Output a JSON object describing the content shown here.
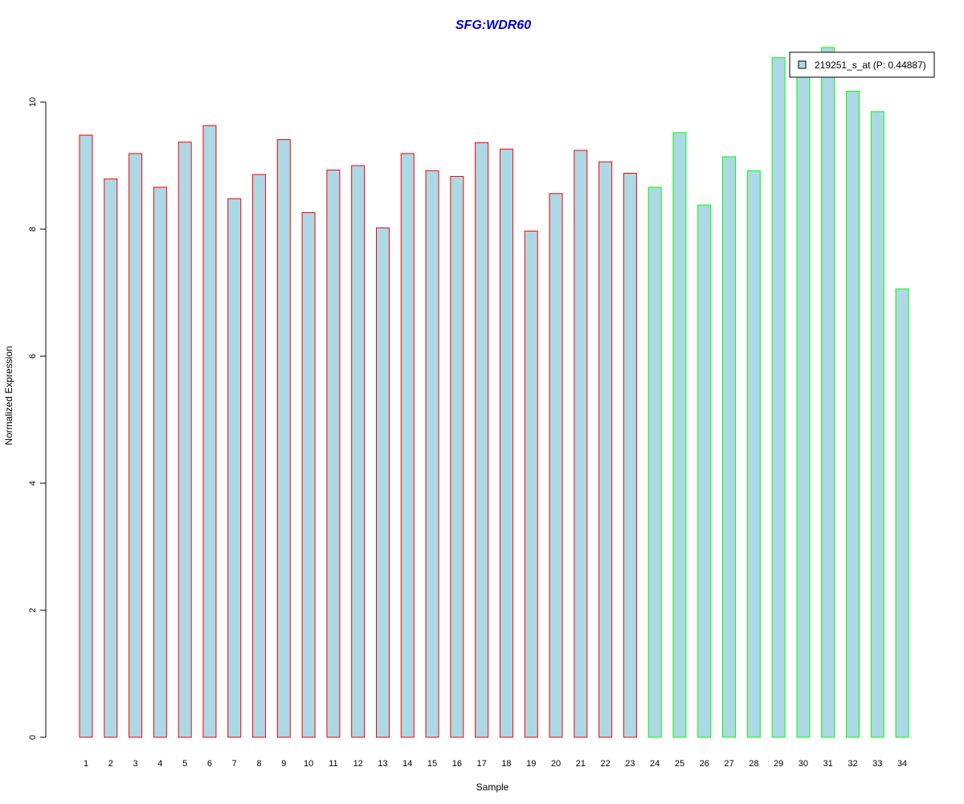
{
  "chart_data": {
    "type": "bar",
    "title": "SFG:WDR60",
    "xlabel": "Sample",
    "ylabel": "Normalized Expression",
    "ylim": [
      0,
      10.9
    ],
    "yticks": [
      0,
      2,
      4,
      6,
      8,
      10
    ],
    "grid": false,
    "legend_position": "top-right",
    "bar_fill": "#add8e6",
    "categories": [
      "1",
      "2",
      "3",
      "4",
      "5",
      "6",
      "7",
      "8",
      "9",
      "10",
      "11",
      "12",
      "13",
      "14",
      "15",
      "16",
      "17",
      "18",
      "19",
      "20",
      "21",
      "22",
      "23",
      "24",
      "25",
      "26",
      "27",
      "28",
      "29",
      "30",
      "31",
      "32",
      "33",
      "34"
    ],
    "series": [
      {
        "name": "219251_s_at (P: 0.44887)",
        "values": [
          9.48,
          8.79,
          9.19,
          8.66,
          9.37,
          9.63,
          8.48,
          8.86,
          9.41,
          8.26,
          8.93,
          9.0,
          8.02,
          9.19,
          8.92,
          8.83,
          9.36,
          9.26,
          7.97,
          8.56,
          9.24,
          9.06,
          8.88,
          8.66,
          9.52,
          8.38,
          9.14,
          8.92,
          10.7,
          10.5,
          10.86,
          10.17,
          9.85,
          7.06
        ]
      }
    ],
    "groups": [
      {
        "edge_color": "#ff0000",
        "categories": [
          "1",
          "2",
          "3",
          "4",
          "5",
          "6",
          "7",
          "8",
          "9",
          "10",
          "11",
          "12",
          "13",
          "14",
          "15",
          "16",
          "17",
          "18",
          "19",
          "20",
          "21",
          "22",
          "23"
        ]
      },
      {
        "edge_color": "#00ff00",
        "categories": [
          "24",
          "25",
          "26",
          "27",
          "28",
          "29",
          "30",
          "31",
          "32",
          "33",
          "34"
        ]
      }
    ]
  }
}
